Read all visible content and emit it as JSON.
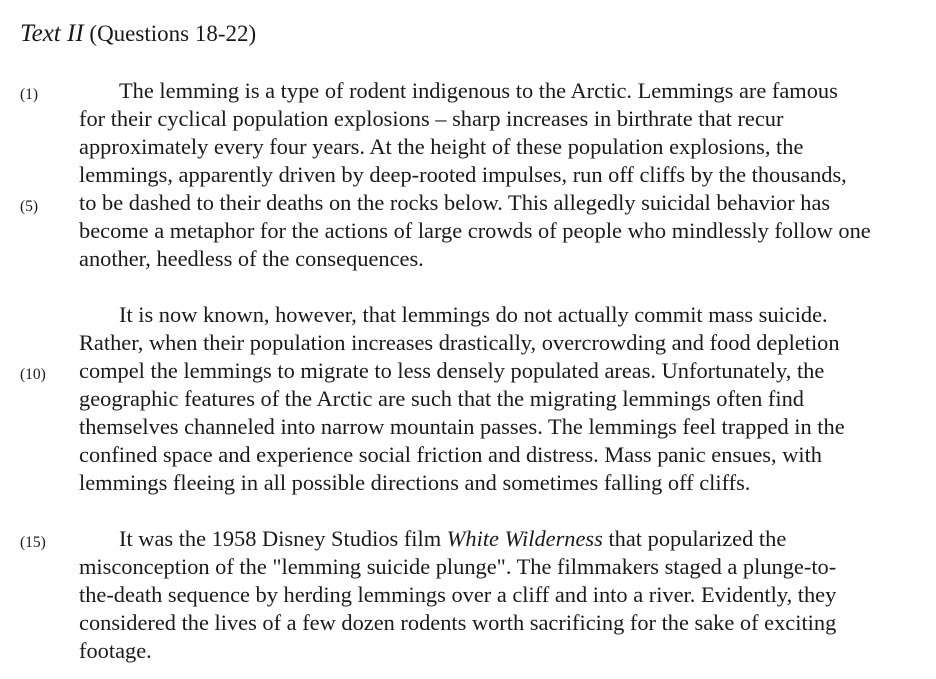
{
  "heading": {
    "title": "Text II",
    "questions": "(Questions 18-22)"
  },
  "line_numbers": [
    "(1)",
    "(5)",
    "(10)",
    "(15)"
  ],
  "paragraphs": [
    {
      "lines": [
        "The lemming is a type of rodent indigenous to the Arctic.  Lemmings are famous",
        "for their cyclical population explosions – sharp increases in birthrate that recur",
        "approximately every four years.  At the height of these population explosions, the",
        "lemmings, apparently driven by deep-rooted impulses, run off cliffs by the thousands,",
        "to be dashed to their deaths on the rocks below.  This allegedly suicidal behavior has",
        "become a metaphor for the actions of large crowds of people who mindlessly follow one",
        "another, heedless of the consequences."
      ]
    },
    {
      "lines": [
        "It is now known, however, that lemmings do not actually commit mass suicide.",
        "Rather, when their population increases drastically, overcrowding and food depletion",
        "compel the lemmings to migrate to less densely populated areas.  Unfortunately, the",
        "geographic features of the Arctic are such that the migrating lemmings often find",
        "themselves channeled into narrow mountain passes.  The lemmings feel trapped in the",
        "confined space and experience social friction and distress.  Mass panic ensues, with",
        "lemmings fleeing in all possible directions and sometimes falling off cliffs."
      ]
    },
    {
      "lines": [
        {
          "pre": "It was the 1958 Disney Studios film ",
          "em": "White Wilderness",
          "post": " that popularized the"
        },
        "misconception of the \"lemming suicide plunge\".  The filmmakers staged a plunge-to-",
        "the-death sequence by herding lemmings over a cliff and into a river.  Evidently, they",
        "considered the lives of a few dozen rodents worth sacrificing for the sake of exciting",
        "footage."
      ]
    }
  ]
}
